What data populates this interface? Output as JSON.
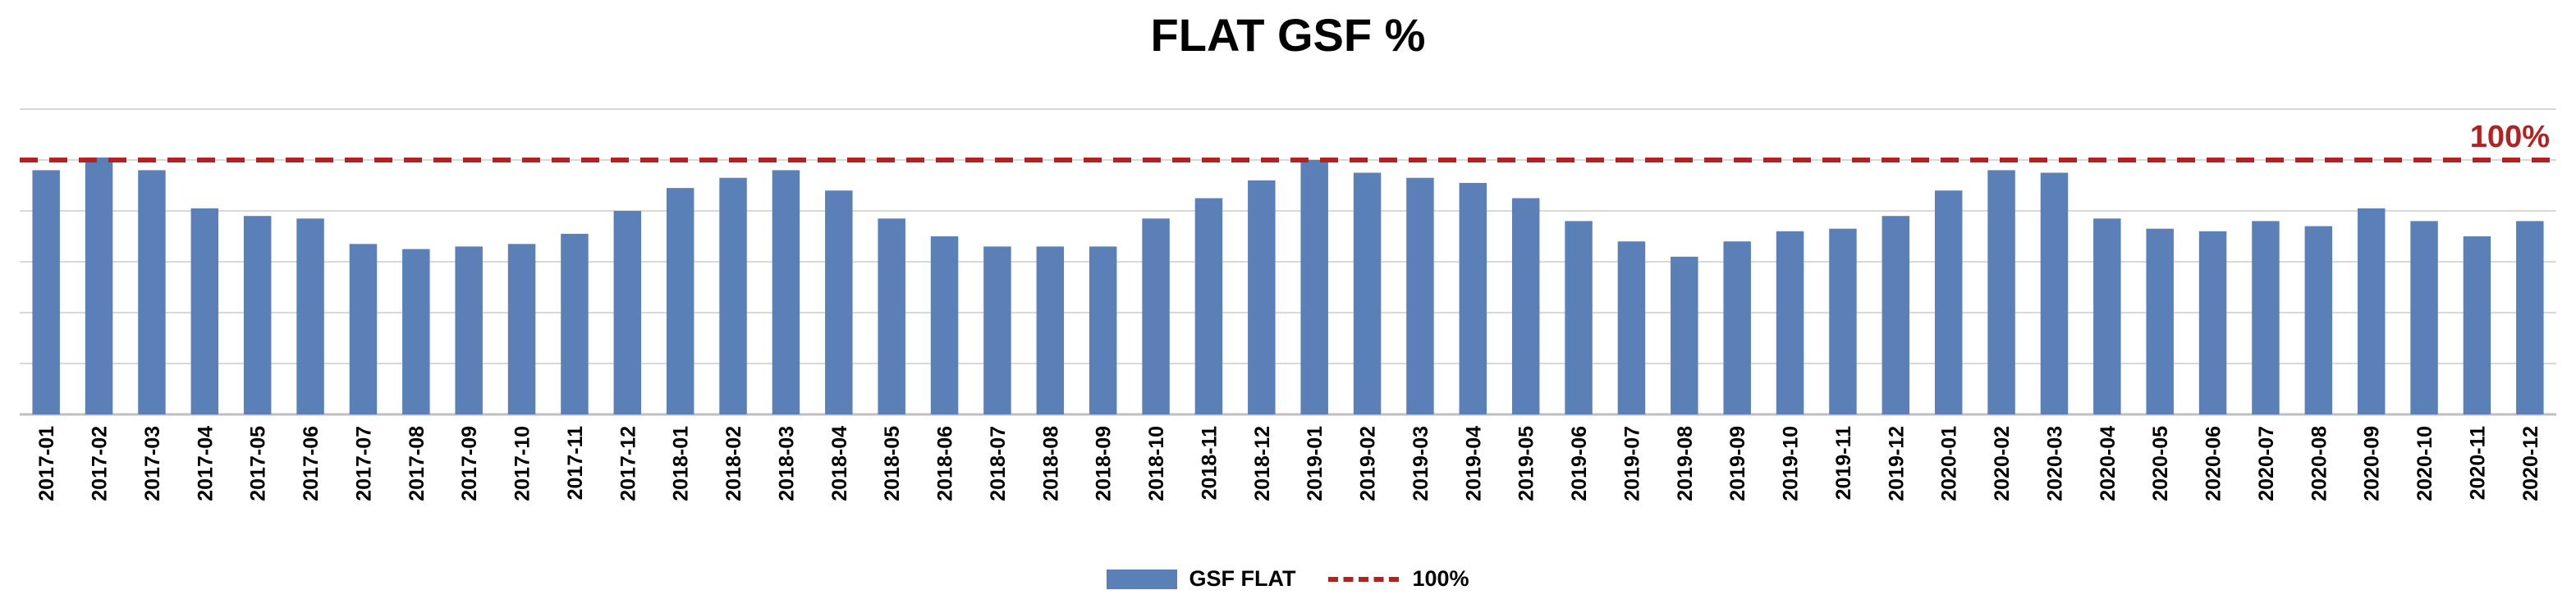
{
  "chart_data": {
    "type": "bar",
    "title": "FLAT GSF %",
    "categories": [
      "2017-01",
      "2017-02",
      "2017-03",
      "2017-04",
      "2017-05",
      "2017-06",
      "2017-07",
      "2017-08",
      "2017-09",
      "2017-10",
      "2017-11",
      "2017-12",
      "2018-01",
      "2018-02",
      "2018-03",
      "2018-04",
      "2018-05",
      "2018-06",
      "2018-07",
      "2018-08",
      "2018-09",
      "2018-10",
      "2018-11",
      "2018-12",
      "2019-01",
      "2019-02",
      "2019-03",
      "2019-04",
      "2019-05",
      "2019-06",
      "2019-07",
      "2019-08",
      "2019-09",
      "2019-10",
      "2019-11",
      "2019-12",
      "2020-01",
      "2020-02",
      "2020-03",
      "2020-04",
      "2020-05",
      "2020-06",
      "2020-07",
      "2020-08",
      "2020-09",
      "2020-10",
      "2020-11",
      "2020-12"
    ],
    "series": [
      {
        "name": "GSF FLAT",
        "color": "#5b80b8",
        "values": [
          96,
          101,
          96,
          81,
          78,
          77,
          67,
          65,
          66,
          67,
          71,
          80,
          89,
          93,
          96,
          88,
          77,
          70,
          66,
          66,
          66,
          77,
          85,
          92,
          100,
          95,
          93,
          91,
          85,
          76,
          68,
          62,
          68,
          72,
          73,
          78,
          88,
          96,
          95,
          77,
          73,
          72,
          76,
          74,
          81,
          76,
          70,
          76
        ]
      }
    ],
    "reference_line": {
      "name": "100%",
      "value": 100,
      "label": "100%",
      "color": "#b22222",
      "style": "dashed"
    },
    "ylim": [
      0,
      120
    ],
    "ytick_step": 20,
    "xlabel": "",
    "ylabel": "",
    "grid": true,
    "legend": {
      "position": "bottom",
      "entries": [
        "GSF FLAT",
        "100%"
      ]
    }
  }
}
